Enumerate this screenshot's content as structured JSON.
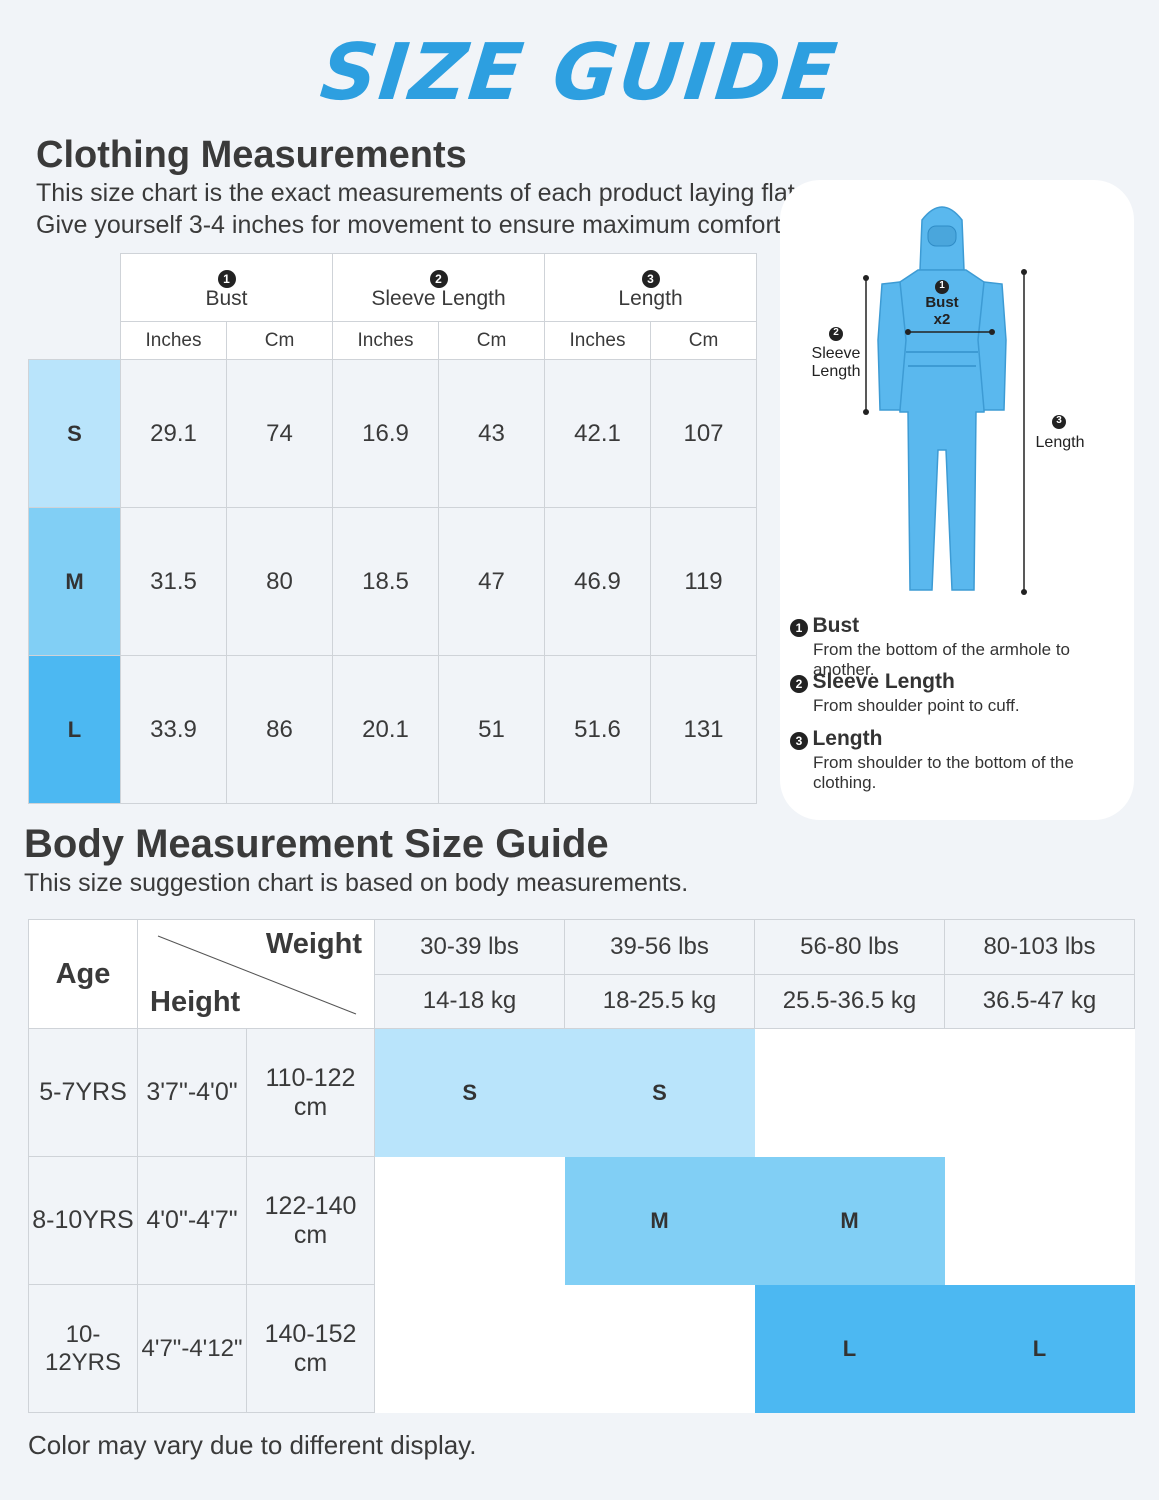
{
  "title": "SIZE GUIDE",
  "clothing": {
    "heading": "Clothing Measurements",
    "line1": "This size chart is the exact measurements of each product laying flat.",
    "line2": "Give yourself 3-4 inches for movement to ensure maximum comfort.",
    "groups": [
      {
        "num": "1",
        "label": "Bust"
      },
      {
        "num": "2",
        "label": "Sleeve Length"
      },
      {
        "num": "3",
        "label": "Length"
      }
    ],
    "units": [
      "Inches",
      "Cm",
      "Inches",
      "Cm",
      "Inches",
      "Cm"
    ],
    "rows": [
      {
        "size": "S",
        "color": "#b9e4fb",
        "values": [
          "29.1",
          "74",
          "16.9",
          "43",
          "42.1",
          "107"
        ]
      },
      {
        "size": "M",
        "color": "#81cff5",
        "values": [
          "31.5",
          "80",
          "18.5",
          "47",
          "46.9",
          "119"
        ]
      },
      {
        "size": "L",
        "color": "#4cb8f2",
        "values": [
          "33.9",
          "86",
          "20.1",
          "51",
          "51.6",
          "131"
        ]
      }
    ]
  },
  "diagram": {
    "bust_num": "1",
    "bust_label": "Bust",
    "bust_x2": "x2",
    "sleeve_num": "2",
    "sleeve_label1": "Sleeve",
    "sleeve_label2": "Length",
    "length_num": "3",
    "length_label": "Length",
    "figure_color": "#5ab8ee",
    "desc": [
      {
        "num": "1",
        "title": "Bust",
        "text": "From the bottom of the armhole to another."
      },
      {
        "num": "2",
        "title": "Sleeve Length",
        "text": "From shoulder point to cuff."
      },
      {
        "num": "3",
        "title": "Length",
        "text": "From shoulder to the bottom of the clothing."
      }
    ]
  },
  "body": {
    "heading": "Body Measurement Size Guide",
    "subheading": "This size suggestion chart is based on body measurements.",
    "age_label": "Age",
    "weight_label": "Weight",
    "height_label": "Height",
    "weights_lbs": [
      "30-39 lbs",
      "39-56 lbs",
      "56-80 lbs",
      "80-103 lbs"
    ],
    "weights_kg": [
      "14-18 kg",
      "18-25.5 kg",
      "25.5-36.5 kg",
      "36.5-47 kg"
    ],
    "rows": [
      {
        "age": "5-7YRS",
        "height_ft": "3'7\"-4'0\"",
        "height_cm": "110-122 cm",
        "sizes": [
          "S",
          "S",
          "",
          ""
        ],
        "color": "#b9e4fb"
      },
      {
        "age": "8-10YRS",
        "height_ft": "4'0\"-4'7\"",
        "height_cm": "122-140 cm",
        "sizes": [
          "",
          "M",
          "M",
          ""
        ],
        "color": "#81cff5"
      },
      {
        "age": "10-12YRS",
        "height_ft": "4'7\"-4'12\"",
        "height_cm": "140-152 cm",
        "sizes": [
          "",
          "",
          "L",
          "L"
        ],
        "color": "#4cb8f2"
      }
    ]
  },
  "footer": "Color may vary due to different display."
}
